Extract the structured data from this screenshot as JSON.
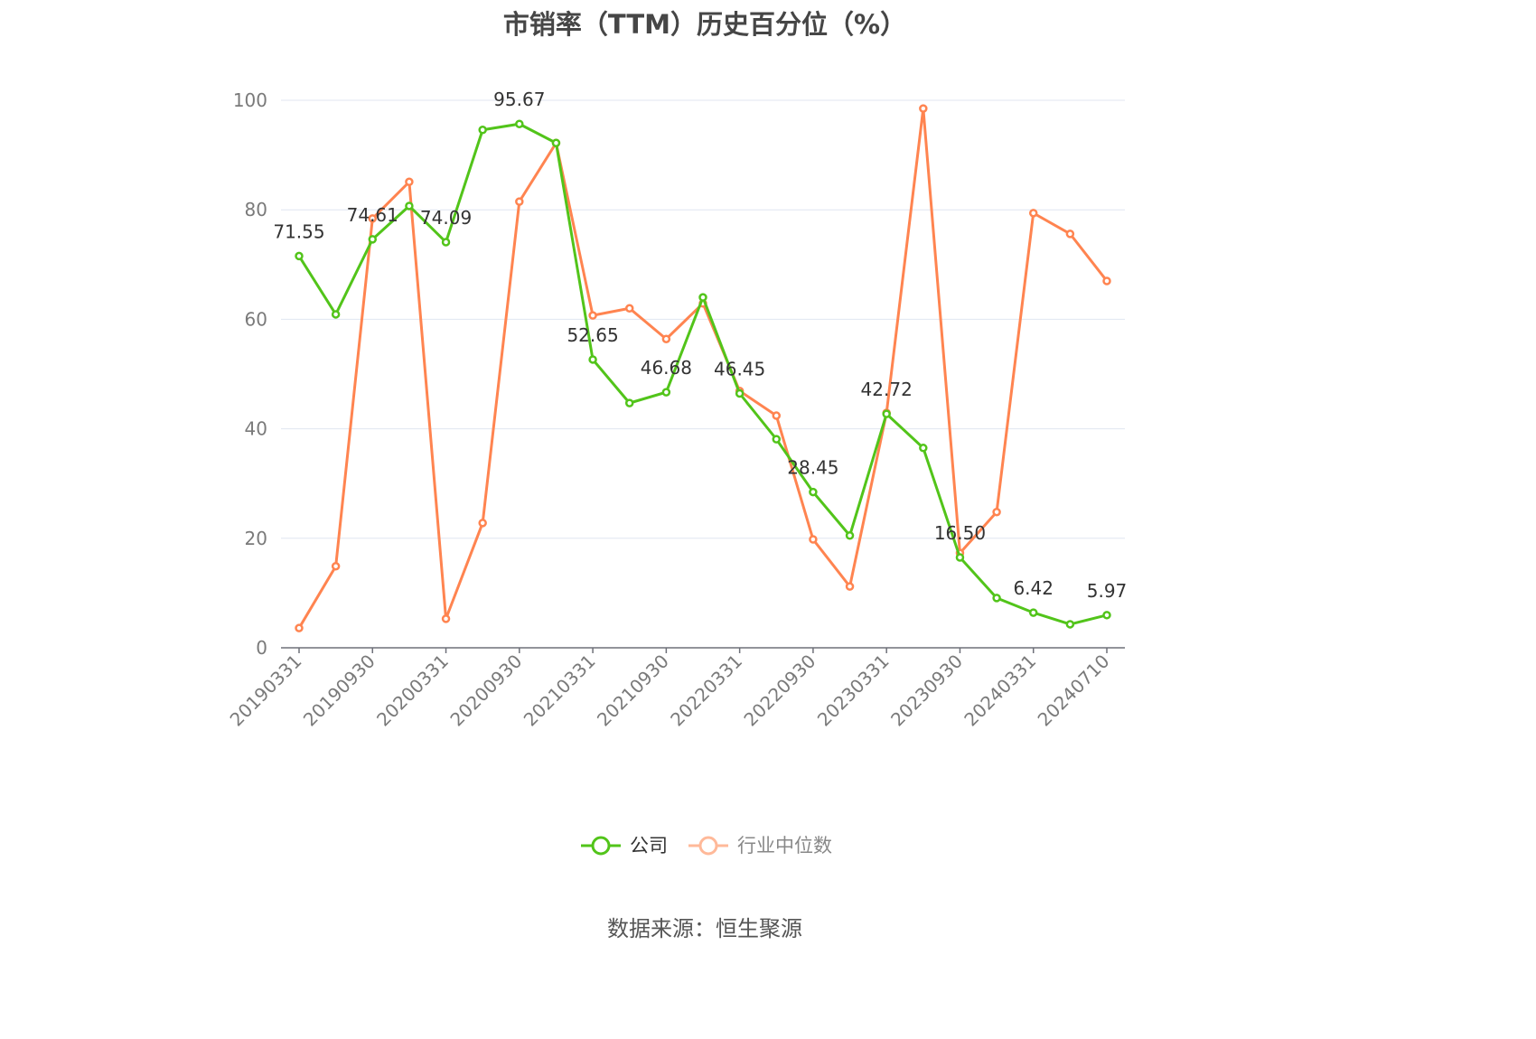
{
  "chart_data": {
    "type": "line",
    "title": "市销率（TTM）历史百分位（%）",
    "source": "数据来源：恒生聚源",
    "ylim": [
      0,
      100
    ],
    "yticks": [
      0,
      20,
      40,
      60,
      80,
      100
    ],
    "grid": true,
    "legend_position": "bottom",
    "x": [
      "20190331",
      "20190630",
      "20190930",
      "20191231",
      "20200331",
      "20200630",
      "20200930",
      "20201231",
      "20210331",
      "20210630",
      "20210930",
      "20211231",
      "20220331",
      "20220630",
      "20220930",
      "20221231",
      "20230331",
      "20230630",
      "20230930",
      "20231231",
      "20240331",
      "20240630",
      "20240710"
    ],
    "xtick_labels": [
      "20190331",
      "20190930",
      "20200331",
      "20200930",
      "20210331",
      "20210930",
      "20220331",
      "20220930",
      "20230331",
      "20230930",
      "20240331",
      "20240710"
    ],
    "series": [
      {
        "name": "公司",
        "color": "#52c41a",
        "values": [
          71.55,
          60.9,
          74.61,
          80.7,
          74.09,
          94.6,
          95.67,
          92.2,
          52.65,
          44.7,
          46.68,
          64.0,
          46.45,
          38.1,
          28.45,
          20.5,
          42.72,
          36.5,
          16.5,
          9.1,
          6.42,
          4.3,
          5.97
        ],
        "data_labels": [
          "71.55",
          null,
          "74.61",
          null,
          "74.09",
          null,
          "95.67",
          null,
          "52.65",
          null,
          "46.68",
          null,
          "46.45",
          null,
          "28.45",
          null,
          "42.72",
          null,
          "16.50",
          null,
          "6.42",
          null,
          "5.97"
        ]
      },
      {
        "name": "行业中位数",
        "color": "#ff8450",
        "values": [
          3.6,
          14.9,
          78.4,
          85.1,
          5.3,
          22.8,
          81.5,
          92.2,
          60.7,
          62.0,
          56.4,
          62.9,
          46.9,
          42.4,
          19.8,
          11.2,
          42.9,
          98.5,
          17.3,
          24.8,
          79.4,
          75.6,
          67.0
        ]
      }
    ]
  }
}
